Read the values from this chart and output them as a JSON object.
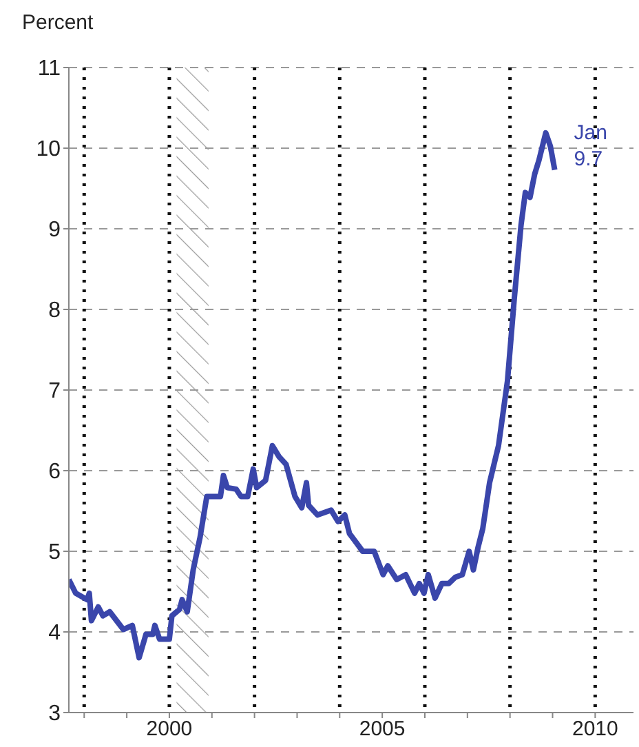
{
  "chart_data": {
    "type": "line",
    "ylabel": "Percent",
    "x": [
      1997.64,
      1997.8,
      1998.07,
      1998.12,
      1998.17,
      1998.33,
      1998.44,
      1998.6,
      1998.92,
      1999.13,
      1999.29,
      1999.45,
      1999.61,
      1999.66,
      1999.77,
      2000.0,
      2000.06,
      2000.24,
      2000.3,
      2000.42,
      2000.56,
      2000.72,
      2000.88,
      2001.04,
      2001.2,
      2001.27,
      2001.36,
      2001.57,
      2001.68,
      2001.84,
      2001.97,
      2002.05,
      2002.26,
      2002.42,
      2002.58,
      2002.74,
      2002.95,
      2003.11,
      2003.22,
      2003.27,
      2003.48,
      2003.8,
      2003.96,
      2004.12,
      2004.23,
      2004.54,
      2004.81,
      2005.02,
      2005.13,
      2005.34,
      2005.55,
      2005.76,
      2005.87,
      2005.98,
      2006.08,
      2006.24,
      2006.4,
      2006.56,
      2006.72,
      2006.88,
      2007.04,
      2007.14,
      2007.25,
      2007.36,
      2007.52,
      2007.73,
      2007.94,
      2008.1,
      2008.26,
      2008.36,
      2008.47,
      2008.58,
      2008.68,
      2008.84,
      2008.95,
      2009.05
    ],
    "series": [
      {
        "color": "#3a46ab",
        "values": [
          4.65,
          4.48,
          4.4,
          4.48,
          4.14,
          4.31,
          4.2,
          4.25,
          4.03,
          4.08,
          3.68,
          3.97,
          3.97,
          4.08,
          3.91,
          3.91,
          4.2,
          4.28,
          4.4,
          4.25,
          4.77,
          5.17,
          5.68,
          5.68,
          5.68,
          5.94,
          5.79,
          5.77,
          5.68,
          5.68,
          6.02,
          5.79,
          5.88,
          6.31,
          6.17,
          6.08,
          5.68,
          5.54,
          5.85,
          5.57,
          5.45,
          5.51,
          5.37,
          5.45,
          5.22,
          5.0,
          5.0,
          4.71,
          4.82,
          4.65,
          4.71,
          4.48,
          4.6,
          4.48,
          4.71,
          4.42,
          4.6,
          4.6,
          4.68,
          4.71,
          5.0,
          4.77,
          5.05,
          5.28,
          5.85,
          6.31,
          7.11,
          8.13,
          9.05,
          9.45,
          9.39,
          9.68,
          9.85,
          10.19,
          10.02,
          9.73
        ]
      }
    ],
    "xlim": [
      1997.64,
      2010.9
    ],
    "xticks": [
      {
        "value": 1998,
        "label": null
      },
      {
        "value": 1999,
        "label": null
      },
      2000,
      {
        "value": 2001,
        "label": null
      },
      {
        "value": 2002,
        "label": null
      },
      {
        "value": 2003,
        "label": null
      },
      {
        "value": 2004,
        "label": null
      },
      2005,
      {
        "value": 2006,
        "label": null
      },
      {
        "value": 2007,
        "label": null
      },
      {
        "value": 2008,
        "label": null
      },
      {
        "value": 2009,
        "label": null
      },
      2010
    ],
    "ylim": [
      3,
      11
    ],
    "yticks": [
      3,
      4,
      5,
      6,
      7,
      8,
      9,
      10,
      11
    ],
    "grid": true,
    "marker": "none",
    "line_style": "solid",
    "bands": [
      {
        "axis": "x",
        "from": 2000.17,
        "to": 2000.92,
        "color": "#999999"
      }
    ],
    "annotations": [
      {
        "text": "Jan 9.7",
        "x": 2009.05,
        "y": 9.7
      }
    ]
  }
}
